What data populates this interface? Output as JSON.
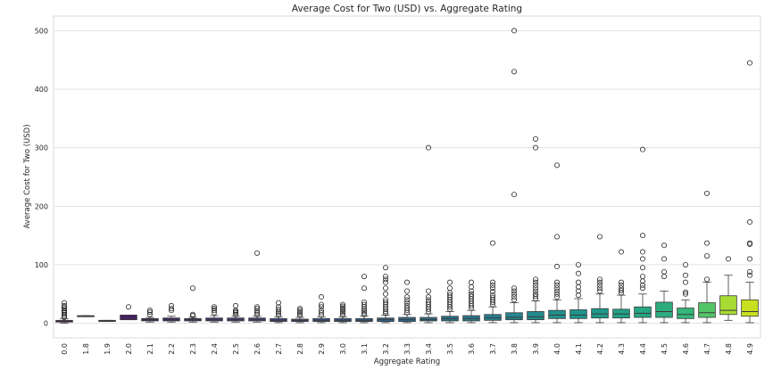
{
  "chart_data": {
    "type": "box",
    "title": "Average Cost for Two (USD) vs. Aggregate Rating",
    "xlabel": "Aggregate Rating",
    "ylabel": "Average Cost for Two (USD)",
    "ylim": [
      -25,
      525
    ],
    "yticks": [
      0,
      100,
      200,
      300,
      400,
      500
    ],
    "grid": true,
    "categories": [
      "0.0",
      "1.8",
      "1.9",
      "2.0",
      "2.1",
      "2.2",
      "2.3",
      "2.4",
      "2.5",
      "2.6",
      "2.7",
      "2.8",
      "2.9",
      "3.0",
      "3.1",
      "3.2",
      "3.3",
      "3.4",
      "3.5",
      "3.6",
      "3.7",
      "3.8",
      "3.9",
      "4.0",
      "4.1",
      "4.2",
      "4.3",
      "4.4",
      "4.5",
      "4.6",
      "4.7",
      "4.8",
      "4.9"
    ],
    "colors": [
      "#440154",
      "#46085c",
      "#471064",
      "#48186a",
      "#482071",
      "#472777",
      "#472e7c",
      "#453581",
      "#433c84",
      "#414287",
      "#3f4889",
      "#3c4f8a",
      "#3a548c",
      "#375a8c",
      "#345f8d",
      "#32658e",
      "#2f6a8e",
      "#2d708e",
      "#2b758e",
      "#297a8e",
      "#277f8e",
      "#25858e",
      "#238a8d",
      "#21908d",
      "#1f958b",
      "#1f9a8a",
      "#21a085",
      "#26a583",
      "#2eab7f",
      "#35b779",
      "#54c568",
      "#a8db34",
      "#c8e020"
    ],
    "boxes": [
      {
        "q1": 2,
        "median": 4,
        "q3": 5,
        "whisker_low": 0,
        "whisker_high": 8,
        "outliers": [
          10,
          12,
          15,
          18,
          20,
          22,
          25,
          28,
          30,
          35
        ]
      },
      {
        "q1": 12,
        "median": 12,
        "q3": 13,
        "whisker_low": 12,
        "whisker_high": 13,
        "outliers": []
      },
      {
        "q1": 3,
        "median": 4,
        "q3": 5,
        "whisker_low": 3,
        "whisker_high": 5,
        "outliers": []
      },
      {
        "q1": 6,
        "median": 9,
        "q3": 14,
        "whisker_low": 6,
        "whisker_high": 14,
        "outliers": [
          28
        ]
      },
      {
        "q1": 4,
        "median": 6,
        "q3": 8,
        "whisker_low": 2,
        "whisker_high": 10,
        "outliers": [
          15,
          19,
          22
        ]
      },
      {
        "q1": 4,
        "median": 6,
        "q3": 9,
        "whisker_low": 2,
        "whisker_high": 12,
        "outliers": [
          22,
          25,
          30
        ]
      },
      {
        "q1": 4,
        "median": 6,
        "q3": 8,
        "whisker_low": 2,
        "whisker_high": 10,
        "outliers": [
          13,
          15,
          60
        ]
      },
      {
        "q1": 4,
        "median": 6,
        "q3": 9,
        "whisker_low": 2,
        "whisker_high": 13,
        "outliers": [
          18,
          22,
          25,
          28
        ]
      },
      {
        "q1": 4,
        "median": 6,
        "q3": 9,
        "whisker_low": 2,
        "whisker_high": 12,
        "outliers": [
          15,
          18,
          20,
          22,
          30
        ]
      },
      {
        "q1": 4,
        "median": 6,
        "q3": 9,
        "whisker_low": 2,
        "whisker_high": 12,
        "outliers": [
          15,
          18,
          21,
          25,
          28,
          120
        ]
      },
      {
        "q1": 3,
        "median": 5,
        "q3": 8,
        "whisker_low": 1,
        "whisker_high": 11,
        "outliers": [
          14,
          17,
          20,
          24,
          28,
          35
        ]
      },
      {
        "q1": 3,
        "median": 5,
        "q3": 7,
        "whisker_low": 1,
        "whisker_high": 10,
        "outliers": [
          13,
          16,
          19,
          22,
          25
        ]
      },
      {
        "q1": 3,
        "median": 5,
        "q3": 8,
        "whisker_low": 1,
        "whisker_high": 11,
        "outliers": [
          14,
          18,
          22,
          28,
          32,
          45
        ]
      },
      {
        "q1": 3,
        "median": 5,
        "q3": 8,
        "whisker_low": 1,
        "whisker_high": 11,
        "outliers": [
          14,
          17,
          20,
          23,
          26,
          29,
          32
        ]
      },
      {
        "q1": 3,
        "median": 5,
        "q3": 8,
        "whisker_low": 1,
        "whisker_high": 12,
        "outliers": [
          15,
          18,
          21,
          24,
          28,
          32,
          36,
          60,
          80
        ]
      },
      {
        "q1": 3,
        "median": 6,
        "q3": 9,
        "whisker_low": 1,
        "whisker_high": 14,
        "outliers": [
          17,
          20,
          24,
          28,
          32,
          36,
          40,
          50,
          60,
          70,
          75,
          80,
          95
        ]
      },
      {
        "q1": 3,
        "median": 6,
        "q3": 10,
        "whisker_low": 1,
        "whisker_high": 15,
        "outliers": [
          18,
          22,
          26,
          30,
          35,
          40,
          45,
          55,
          70
        ]
      },
      {
        "q1": 4,
        "median": 6,
        "q3": 10,
        "whisker_low": 1,
        "whisker_high": 16,
        "outliers": [
          20,
          24,
          28,
          32,
          36,
          40,
          45,
          55,
          300
        ]
      },
      {
        "q1": 4,
        "median": 8,
        "q3": 12,
        "whisker_low": 1,
        "whisker_high": 20,
        "outliers": [
          24,
          28,
          32,
          36,
          40,
          44,
          48,
          52,
          60,
          70
        ]
      },
      {
        "q1": 4,
        "median": 8,
        "q3": 13,
        "whisker_low": 1,
        "whisker_high": 22,
        "outliers": [
          26,
          30,
          34,
          38,
          42,
          46,
          50,
          55,
          62,
          70
        ]
      },
      {
        "q1": 5,
        "median": 9,
        "q3": 15,
        "whisker_low": 1,
        "whisker_high": 28,
        "outliers": [
          32,
          36,
          40,
          44,
          48,
          54,
          60,
          65,
          70,
          137
        ]
      },
      {
        "q1": 6,
        "median": 10,
        "q3": 18,
        "whisker_low": 1,
        "whisker_high": 35,
        "outliers": [
          40,
          45,
          50,
          55,
          60,
          220,
          430,
          500
        ]
      },
      {
        "q1": 6,
        "median": 11,
        "q3": 20,
        "whisker_low": 1,
        "whisker_high": 38,
        "outliers": [
          42,
          46,
          50,
          55,
          60,
          65,
          70,
          75,
          300,
          315
        ]
      },
      {
        "q1": 8,
        "median": 14,
        "q3": 22,
        "whisker_low": 1,
        "whisker_high": 40,
        "outliers": [
          45,
          50,
          55,
          60,
          65,
          70,
          97,
          148,
          270
        ]
      },
      {
        "q1": 8,
        "median": 14,
        "q3": 23,
        "whisker_low": 1,
        "whisker_high": 42,
        "outliers": [
          48,
          55,
          62,
          70,
          85,
          100
        ]
      },
      {
        "q1": 9,
        "median": 16,
        "q3": 25,
        "whisker_low": 1,
        "whisker_high": 50,
        "outliers": [
          55,
          60,
          65,
          70,
          75,
          148
        ]
      },
      {
        "q1": 9,
        "median": 16,
        "q3": 24,
        "whisker_low": 1,
        "whisker_high": 48,
        "outliers": [
          52,
          56,
          60,
          65,
          70,
          122
        ]
      },
      {
        "q1": 10,
        "median": 17,
        "q3": 28,
        "whisker_low": 1,
        "whisker_high": 50,
        "outliers": [
          60,
          65,
          72,
          80,
          95,
          110,
          122,
          150,
          297
        ]
      },
      {
        "q1": 10,
        "median": 20,
        "q3": 36,
        "whisker_low": 1,
        "whisker_high": 55,
        "outliers": [
          80,
          88,
          110,
          133
        ]
      },
      {
        "q1": 8,
        "median": 15,
        "q3": 26,
        "whisker_low": 1,
        "whisker_high": 40,
        "outliers": [
          50,
          53,
          70,
          82,
          100
        ]
      },
      {
        "q1": 10,
        "median": 18,
        "q3": 35,
        "whisker_low": 1,
        "whisker_high": 70,
        "outliers": [
          75,
          115,
          137,
          222
        ]
      },
      {
        "q1": 15,
        "median": 22,
        "q3": 47,
        "whisker_low": 5,
        "whisker_high": 82,
        "outliers": [
          110
        ]
      },
      {
        "q1": 12,
        "median": 20,
        "q3": 40,
        "whisker_low": 1,
        "whisker_high": 70,
        "outliers": [
          82,
          88,
          110,
          135,
          137,
          173,
          445
        ]
      }
    ]
  }
}
